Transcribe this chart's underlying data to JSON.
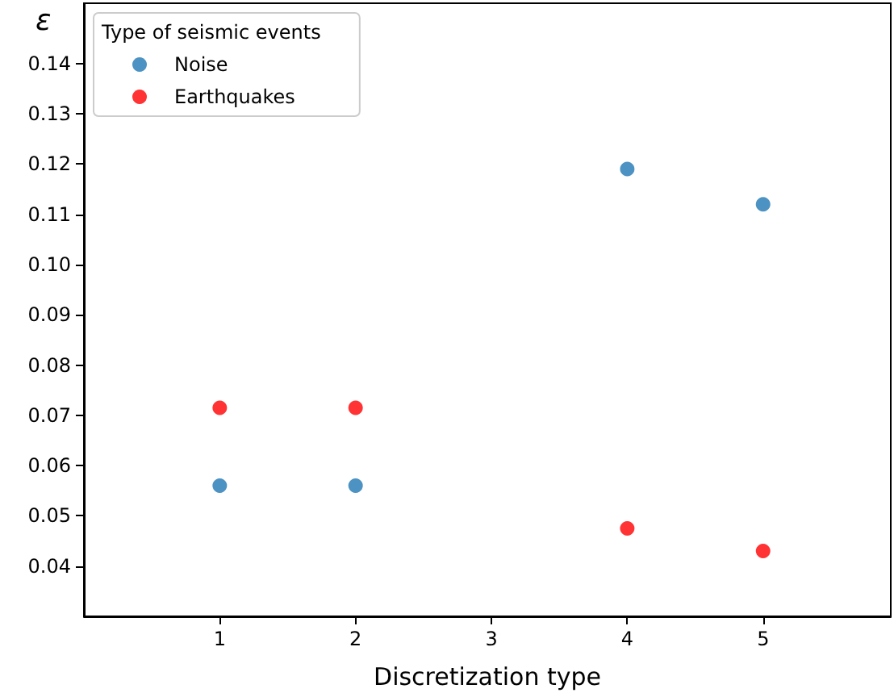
{
  "chart_data": {
    "type": "scatter",
    "xlabel": "Discretization type",
    "ylabel": "ε",
    "legend_title": "Type of seismic events",
    "x": [
      1,
      2,
      4,
      5
    ],
    "series": [
      {
        "name": "Noise",
        "color": "#1f77b4",
        "values": [
          0.056,
          0.056,
          0.119,
          0.112
        ]
      },
      {
        "name": "Earthquakes",
        "color": "#ff0000",
        "values": [
          0.0715,
          0.0715,
          0.0475,
          0.043
        ]
      }
    ],
    "xlim": [
      0,
      5.94
    ],
    "xticks": [
      1,
      2,
      3,
      4,
      5
    ],
    "ylim": [
      0.03,
      0.152
    ],
    "yticks": [
      0.04,
      0.05,
      0.06,
      0.07,
      0.08,
      0.09,
      {
        "value": 0.1,
        "label": "0.10"
      },
      0.11,
      0.12,
      0.13,
      0.14
    ],
    "legend": "top left",
    "grid": false,
    "marker": "circle"
  }
}
